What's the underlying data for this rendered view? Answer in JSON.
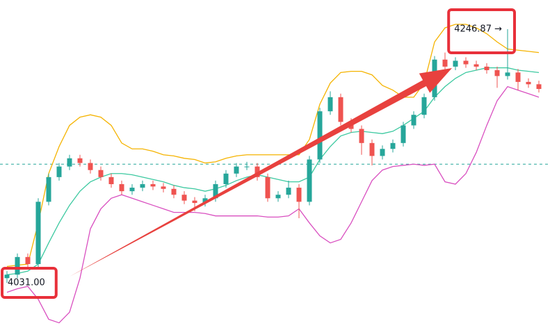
{
  "chart_data": {
    "type": "candlestick",
    "ylim": [
      3992.6,
      4271.7
    ],
    "up_color": "#26a69a",
    "down_color": "#ef5350",
    "open": [
      4035,
      4038,
      4053,
      4047,
      4100,
      4121,
      4130,
      4137,
      4133,
      4127,
      4121,
      4115,
      4109,
      4112,
      4115,
      4113,
      4111,
      4106,
      4101,
      4099,
      4103,
      4115,
      4124,
      4130,
      4130,
      4121,
      4103,
      4106,
      4112,
      4100,
      4136,
      4177,
      4189,
      4168,
      4162,
      4150,
      4139,
      4145,
      4150,
      4165,
      4174,
      4189,
      4221,
      4215,
      4220,
      4217,
      4215,
      4212,
      4207,
      4210,
      4202,
      4200
    ],
    "high": [
      4041,
      4056,
      4056,
      4103,
      4124,
      4133,
      4140,
      4140,
      4136,
      4130,
      4124,
      4118,
      4115,
      4118,
      4118,
      4116,
      4114,
      4109,
      4104,
      4106,
      4118,
      4127,
      4133,
      4134,
      4133,
      4124,
      4109,
      4118,
      4115,
      4139,
      4180,
      4194,
      4192,
      4171,
      4165,
      4153,
      4148,
      4153,
      4168,
      4177,
      4192,
      4224,
      4227,
      4223,
      4223,
      4220,
      4218,
      4215,
      4246.87,
      4213,
      4205,
      4203
    ],
    "low": [
      4031.0,
      4035,
      4044,
      4044,
      4097,
      4118,
      4127,
      4130,
      4124,
      4118,
      4112,
      4106,
      4106,
      4109,
      4110,
      4108,
      4103,
      4098,
      4092,
      4096,
      4100,
      4112,
      4121,
      4127,
      4118,
      4100,
      4100,
      4103,
      4086,
      4097,
      4133,
      4174,
      4165,
      4159,
      4140,
      4131,
      4136,
      4142,
      4147,
      4162,
      4171,
      4186,
      4212,
      4212,
      4214,
      4212,
      4209,
      4197,
      4204,
      4195,
      4197,
      4193
    ],
    "close": [
      4038,
      4053,
      4047,
      4100,
      4121,
      4130,
      4137,
      4133,
      4127,
      4121,
      4115,
      4109,
      4112,
      4115,
      4113,
      4111,
      4106,
      4101,
      4099,
      4103,
      4115,
      4124,
      4130,
      4130,
      4121,
      4103,
      4106,
      4112,
      4100,
      4136,
      4177,
      4189,
      4168,
      4162,
      4150,
      4139,
      4145,
      4150,
      4165,
      4174,
      4189,
      4221,
      4215,
      4220,
      4217,
      4215,
      4212,
      4207,
      4210,
      4202,
      4200,
      4196
    ],
    "bands": [
      {
        "color": "#f5b300",
        "values": [
          4045,
          4046,
          4047,
          4082,
          4124,
          4147,
          4165,
          4172,
          4174,
          4172,
          4165,
          4150,
          4145,
          4145,
          4143,
          4140,
          4139,
          4137,
          4136,
          4133,
          4134,
          4137,
          4139,
          4140,
          4140,
          4140,
          4140,
          4140,
          4140,
          4153,
          4183,
          4201,
          4210,
          4211,
          4211,
          4208,
          4199,
          4195,
          4189,
          4189,
          4201,
          4236,
          4248,
          4251,
          4251,
          4248,
          4243,
          4236,
          4230,
          4229,
          4228,
          4227
        ]
      },
      {
        "color": "#3cc9a0",
        "values": [
          4038,
          4039,
          4041,
          4047,
          4065,
          4082,
          4097,
          4109,
          4117,
          4121,
          4124,
          4124,
          4123,
          4121,
          4119,
          4117,
          4114,
          4112,
          4111,
          4109,
          4111,
          4114,
          4118,
          4121,
          4123,
          4121,
          4119,
          4117,
          4117,
          4121,
          4136,
          4147,
          4156,
          4159,
          4160,
          4159,
          4158,
          4160,
          4165,
          4171,
          4177,
          4189,
          4198,
          4205,
          4210,
          4212,
          4214,
          4214,
          4214,
          4212,
          4211,
          4210
        ]
      },
      {
        "color": "#d94fc0",
        "values": [
          4023,
          4026,
          4028,
          4017,
          4000,
          3997,
          4006,
          4035,
          4077,
          4094,
          4103,
          4106,
          4103,
          4100,
          4097,
          4094,
          4091,
          4091,
          4091,
          4090,
          4088,
          4088,
          4088,
          4088,
          4088,
          4087,
          4087,
          4088,
          4094,
          4082,
          4071,
          4065,
          4068,
          4082,
          4100,
          4118,
          4127,
          4130,
          4131,
          4132,
          4131,
          4132,
          4117,
          4115,
          4124,
          4142,
          4165,
          4186,
          4198,
          4195,
          4192,
          4189
        ]
      }
    ],
    "reference_line": {
      "value": 4132,
      "color": "#26a69a"
    },
    "annotations": [
      {
        "label": "4246.87 →",
        "value": 4246.87,
        "index": 48
      },
      {
        "label": "4031.00",
        "value": 4031.0,
        "index": 0
      }
    ]
  }
}
